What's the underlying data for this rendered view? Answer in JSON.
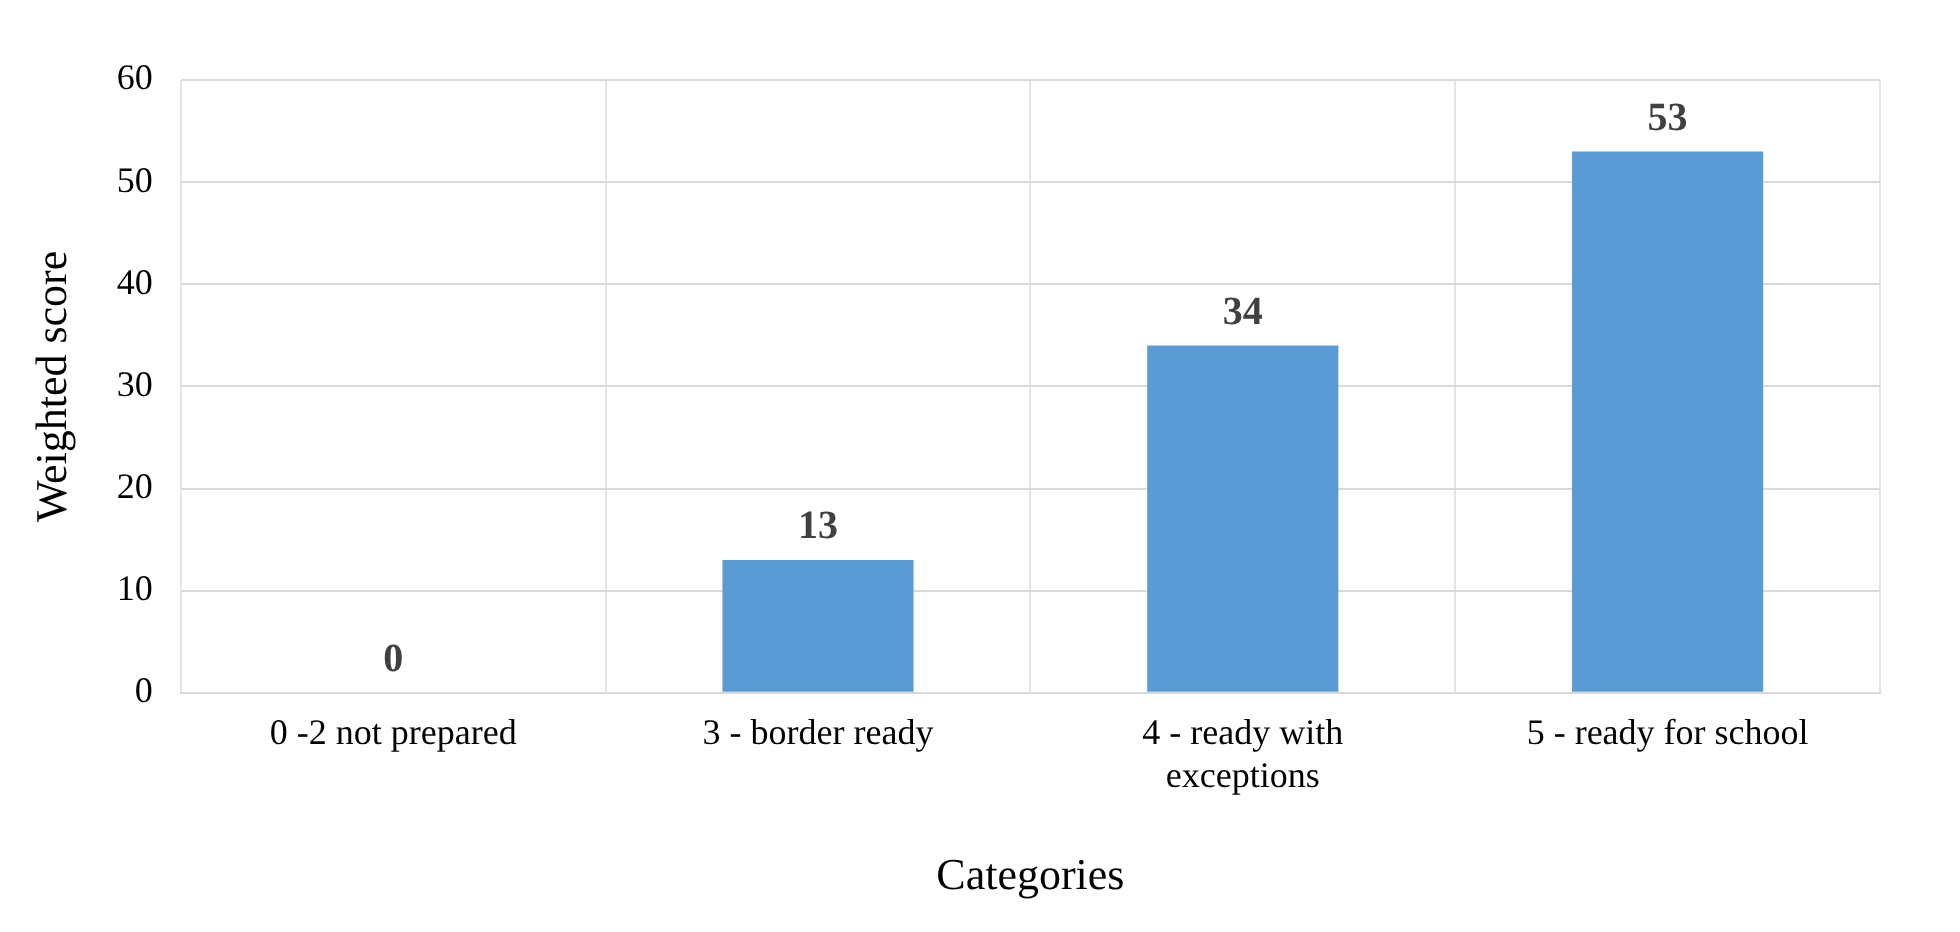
{
  "chart_data": {
    "type": "bar",
    "xlabel": "Categories",
    "ylabel": "Weighted score",
    "categories": [
      "0 -2 not prepared",
      "3 - border ready",
      "4 - ready with exceptions",
      "5 - ready for school"
    ],
    "values": [
      0,
      13,
      34,
      53
    ],
    "color": "#5b9bd5",
    "ylim": [
      0,
      60
    ],
    "yticks": [
      0,
      10,
      20,
      30,
      40,
      50,
      60
    ],
    "grid": true,
    "legend": false,
    "data_labels": true
  }
}
